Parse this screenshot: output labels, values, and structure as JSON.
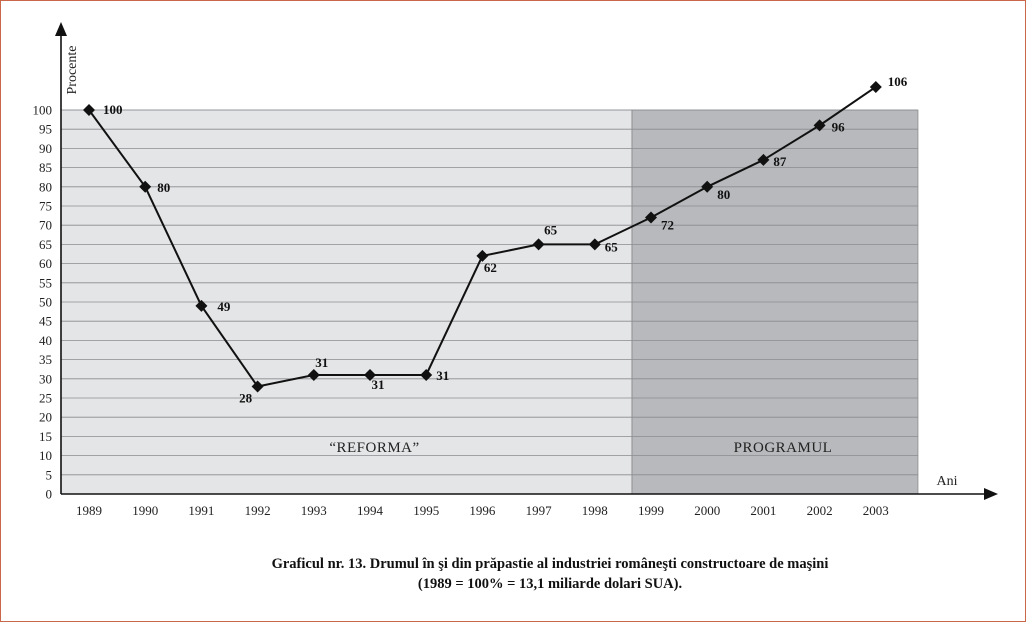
{
  "chart_data": {
    "type": "line",
    "x": [
      "1989",
      "1990",
      "1991",
      "1992",
      "1993",
      "1994",
      "1995",
      "1996",
      "1997",
      "1998",
      "1999",
      "2000",
      "2001",
      "2002",
      "2003"
    ],
    "series": [
      {
        "values": [
          100,
          80,
          49,
          28,
          31,
          31,
          31,
          62,
          65,
          65,
          72,
          80,
          87,
          96,
          106
        ]
      }
    ],
    "data_labels": [
      "100",
      "80",
      "49",
      "28",
      "31",
      "31",
      "31",
      "62",
      "65",
      "65",
      "72",
      "80",
      "87",
      "96",
      "106"
    ],
    "ylim": [
      0,
      100
    ],
    "yticks": [
      0,
      5,
      10,
      15,
      20,
      25,
      30,
      35,
      40,
      45,
      50,
      55,
      60,
      65,
      70,
      75,
      80,
      85,
      90,
      95,
      100
    ],
    "ylabel": "Procente",
    "xlabel": "Ani",
    "grid": true,
    "regions": [
      {
        "label": "“REFORMA”",
        "from": "1989",
        "to": "1998",
        "color": "#e4e5e7"
      },
      {
        "label": "PROGRAMUL",
        "from": "1999",
        "to": "2003",
        "color": "#b7b9bc"
      }
    ],
    "marker": "diamond",
    "line_color": "#111111"
  },
  "caption": {
    "line1": "Graficul nr. 13. Drumul în şi din prăpastie al industriei româneşti constructoare de maşini",
    "line2": "(1989 = 100% = 13,1 miliarde dolari SUA)."
  }
}
